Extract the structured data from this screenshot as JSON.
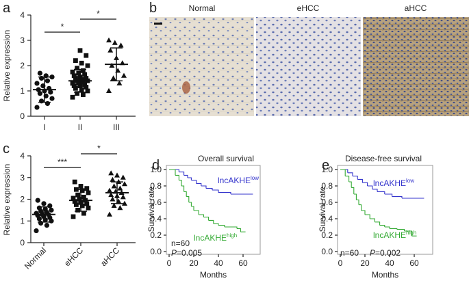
{
  "chart_data": [
    {
      "type": "dotplot",
      "panel": "a",
      "y_label": "Relative expression",
      "categories": [
        "I",
        "II",
        "III"
      ],
      "groups": [
        [
          0.35,
          0.5,
          0.6,
          0.7,
          0.8,
          0.9,
          0.95,
          1.0,
          1.05,
          1.1,
          1.2,
          1.3,
          1.4,
          1.5,
          1.55,
          1.6,
          1.7
        ],
        [
          0.75,
          0.85,
          0.9,
          1.0,
          1.05,
          1.1,
          1.15,
          1.2,
          1.2,
          1.25,
          1.3,
          1.3,
          1.35,
          1.4,
          1.4,
          1.45,
          1.5,
          1.5,
          1.55,
          1.6,
          1.65,
          1.7,
          1.75,
          1.8,
          1.9,
          2.0,
          2.1,
          2.2,
          2.4,
          2.6
        ],
        [
          1.0,
          1.3,
          1.5,
          1.6,
          1.8,
          2.0,
          2.1,
          2.3,
          2.6,
          2.8,
          2.9,
          3.0
        ]
      ],
      "means": [
        1.05,
        1.4,
        2.05
      ],
      "sds": [
        0.5,
        0.45,
        0.65
      ],
      "ylim": [
        0,
        4
      ],
      "yticks": [
        0,
        1,
        2,
        3,
        4
      ],
      "comparisons": [
        {
          "groups": [
            "I",
            "II"
          ],
          "label": "*"
        },
        {
          "groups": [
            "II",
            "III"
          ],
          "label": "*"
        }
      ]
    },
    {
      "type": "dotplot",
      "panel": "c",
      "y_label": "Relative expression",
      "categories": [
        "Normal",
        "eHCC",
        "aHCC"
      ],
      "groups": [
        [
          0.55,
          0.8,
          0.9,
          1.0,
          1.05,
          1.1,
          1.15,
          1.2,
          1.25,
          1.3,
          1.3,
          1.35,
          1.4,
          1.45,
          1.5,
          1.55,
          1.6,
          1.7,
          1.8,
          1.95
        ],
        [
          1.2,
          1.35,
          1.5,
          1.6,
          1.7,
          1.75,
          1.8,
          1.85,
          1.9,
          1.95,
          2.0,
          2.05,
          2.1,
          2.2,
          2.3,
          2.4,
          2.45,
          2.5,
          2.6,
          2.8
        ],
        [
          1.3,
          1.6,
          1.7,
          1.8,
          1.9,
          2.0,
          2.1,
          2.15,
          2.2,
          2.3,
          2.35,
          2.4,
          2.5,
          2.6,
          2.7,
          2.8,
          2.9,
          3.0,
          3.1,
          3.2
        ]
      ],
      "means": [
        1.3,
        1.95,
        2.3
      ],
      "sds": [
        0.35,
        0.5,
        0.5
      ],
      "ylim": [
        0,
        4
      ],
      "yticks": [
        0,
        1,
        2,
        3,
        4
      ],
      "comparisons": [
        {
          "groups": [
            "Normal",
            "eHCC"
          ],
          "label": "***"
        },
        {
          "groups": [
            "eHCC",
            "aHCC"
          ],
          "label": "*"
        }
      ]
    },
    {
      "type": "km",
      "panel": "d",
      "title": "Overall survival",
      "x_label": "Months",
      "y_label": "Survival rate",
      "xlim": [
        0,
        70
      ],
      "xticks": [
        0,
        20,
        40,
        60
      ],
      "ylim": [
        0,
        1
      ],
      "yticks": [
        {
          "value": 0,
          "label": "0.0"
        },
        0.2,
        0.4,
        0.6,
        0.8,
        {
          "value": 1,
          "label": "1.0"
        }
      ],
      "series": [
        {
          "name": "lncAKHE",
          "superscript": "low",
          "color": "#3333cc",
          "x": [
            0,
            8,
            12,
            15,
            18,
            22,
            26,
            30,
            35,
            40,
            50,
            68
          ],
          "values": [
            1,
            0.97,
            0.93,
            0.9,
            0.87,
            0.83,
            0.8,
            0.77,
            0.75,
            0.72,
            0.7,
            0.7
          ]
        },
        {
          "name": "lncAKHE",
          "superscript": "high",
          "color": "#33aa33",
          "x": [
            0,
            5,
            8,
            10,
            12,
            14,
            16,
            18,
            20,
            24,
            28,
            32,
            36,
            40,
            45,
            55,
            58,
            62
          ],
          "values": [
            1,
            0.93,
            0.87,
            0.8,
            0.73,
            0.67,
            0.6,
            0.55,
            0.5,
            0.45,
            0.42,
            0.38,
            0.34,
            0.32,
            0.3,
            0.28,
            0.24,
            0.24
          ]
        }
      ],
      "annotations": [
        "n=60"
      ],
      "p_label": "P",
      "p_value": "=0.005"
    },
    {
      "type": "km",
      "panel": "e",
      "title": "Disease-free survival",
      "x_label": "Months",
      "y_label": "Survival rate",
      "xlim": [
        0,
        70
      ],
      "xticks": [
        0,
        20,
        40,
        60
      ],
      "ylim": [
        0,
        1
      ],
      "yticks": [
        {
          "value": 0,
          "label": "0.0"
        },
        0.2,
        0.4,
        0.6,
        0.8,
        {
          "value": 1,
          "label": "1.0"
        }
      ],
      "series": [
        {
          "name": "lncAKHE",
          "superscript": "low",
          "color": "#3333cc",
          "x": [
            0,
            6,
            10,
            14,
            18,
            22,
            26,
            30,
            36,
            42,
            50,
            68
          ],
          "values": [
            1,
            0.96,
            0.92,
            0.88,
            0.84,
            0.8,
            0.76,
            0.73,
            0.7,
            0.67,
            0.65,
            0.65
          ]
        },
        {
          "name": "lncAKHE",
          "superscript": "high",
          "color": "#33aa33",
          "x": [
            0,
            4,
            7,
            9,
            11,
            13,
            15,
            17,
            20,
            24,
            28,
            32,
            36,
            40,
            46,
            52,
            58,
            62
          ],
          "values": [
            1,
            0.92,
            0.85,
            0.78,
            0.7,
            0.63,
            0.57,
            0.5,
            0.45,
            0.4,
            0.36,
            0.32,
            0.3,
            0.28,
            0.27,
            0.25,
            0.19,
            0.19
          ]
        }
      ],
      "annotations": [
        "n=60"
      ],
      "p_label": "P",
      "p_value": "=0.002"
    }
  ],
  "image_panel": {
    "panel": "b",
    "labels": [
      "Normal",
      "eHCC",
      "aHCC"
    ]
  }
}
